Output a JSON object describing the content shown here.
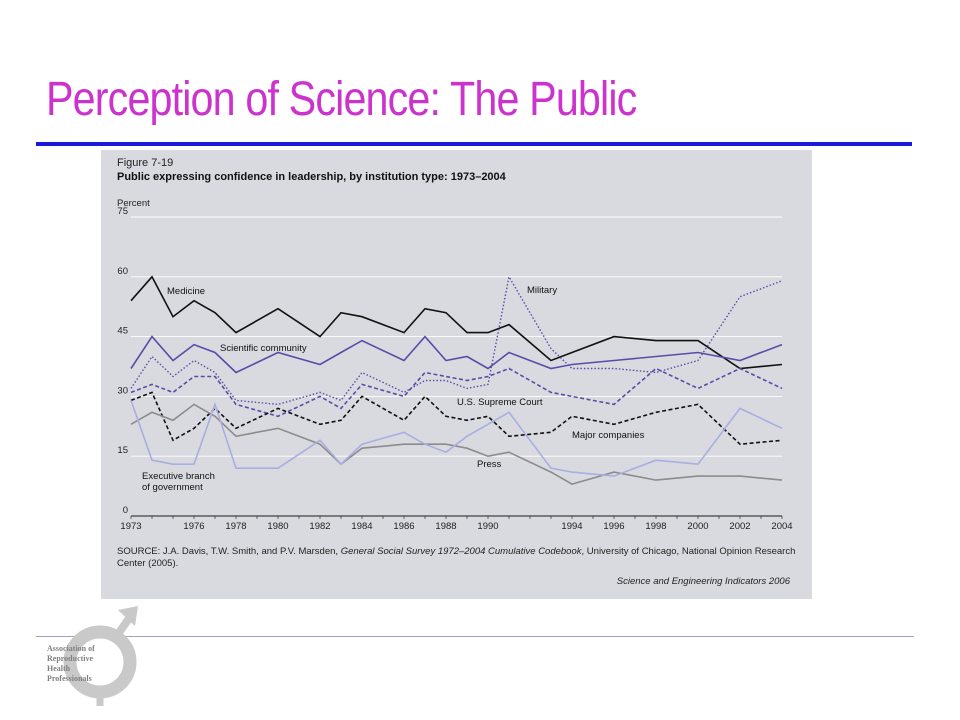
{
  "slide": {
    "title": "Perception of Science: The Public"
  },
  "figure": {
    "number": "Figure 7-19",
    "caption": "Public expressing confidence in leadership, by institution type: 1973–2004",
    "source_prefix": "SOURCE: J.A. Davis, T.W. Smith, and P.V. Marsden, ",
    "source_title": "General Social Survey 1972–2004 Cumulative Codebook",
    "source_suffix": ", University of Chicago, National Opinion Research Center (2005).",
    "credit": "Science and Engineering Indicators 2006"
  },
  "logo": {
    "lines": [
      "Association of",
      "Reproductive",
      "Health",
      "Professionals"
    ]
  },
  "colors": {
    "title": "#cc33cc",
    "title_rule": "#1a1adb",
    "panel": "#d9dadf",
    "medicine": "#111111",
    "scientific_community": "#5b4ba8",
    "military": "#5b4ba8",
    "supreme_court": "#5b4ba8",
    "major_companies": "#111111",
    "press": "#8c8c8c",
    "executive_branch": "#a8aee0"
  },
  "chart_data": {
    "type": "line",
    "ylabel": "Percent",
    "ylim": [
      0,
      75
    ],
    "yticks": [
      "0",
      "15",
      "30",
      "45",
      "60",
      "75"
    ],
    "xlim": [
      1973,
      2004
    ],
    "xticks": [
      "1973",
      "1976",
      "1978",
      "1980",
      "1982",
      "1984",
      "1986",
      "1988",
      "1990",
      "1994",
      "1996",
      "1998",
      "2000",
      "2002",
      "2004"
    ],
    "grid": true,
    "series": [
      {
        "name": "Medicine",
        "label": "Medicine",
        "style": "solid",
        "color": "#111111",
        "points": [
          [
            1973,
            54
          ],
          [
            1974,
            60
          ],
          [
            1975,
            50
          ],
          [
            1976,
            54
          ],
          [
            1977,
            51
          ],
          [
            1978,
            46
          ],
          [
            1980,
            52
          ],
          [
            1982,
            45
          ],
          [
            1983,
            51
          ],
          [
            1984,
            50
          ],
          [
            1986,
            46
          ],
          [
            1987,
            52
          ],
          [
            1988,
            51
          ],
          [
            1989,
            46
          ],
          [
            1990,
            46
          ],
          [
            1991,
            48
          ],
          [
            1993,
            39
          ],
          [
            1994,
            41
          ],
          [
            1996,
            45
          ],
          [
            1998,
            44
          ],
          [
            2000,
            44
          ],
          [
            2002,
            37
          ],
          [
            2004,
            38
          ]
        ]
      },
      {
        "name": "Scientific community",
        "label": "Scientific community",
        "style": "solid",
        "color": "#5b4ba8",
        "points": [
          [
            1973,
            37
          ],
          [
            1974,
            45
          ],
          [
            1975,
            39
          ],
          [
            1976,
            43
          ],
          [
            1977,
            41
          ],
          [
            1978,
            36
          ],
          [
            1980,
            41
          ],
          [
            1982,
            38
          ],
          [
            1983,
            41
          ],
          [
            1984,
            44
          ],
          [
            1986,
            39
          ],
          [
            1987,
            45
          ],
          [
            1988,
            39
          ],
          [
            1989,
            40
          ],
          [
            1990,
            37
          ],
          [
            1991,
            41
          ],
          [
            1993,
            37
          ],
          [
            1994,
            38
          ],
          [
            1996,
            39
          ],
          [
            1998,
            40
          ],
          [
            2000,
            41
          ],
          [
            2002,
            39
          ],
          [
            2004,
            43
          ]
        ]
      },
      {
        "name": "Military",
        "label": "Military",
        "style": "dotted",
        "color": "#5b4ba8",
        "points": [
          [
            1973,
            32
          ],
          [
            1974,
            40
          ],
          [
            1975,
            35
          ],
          [
            1976,
            39
          ],
          [
            1977,
            36
          ],
          [
            1978,
            29
          ],
          [
            1980,
            28
          ],
          [
            1982,
            31
          ],
          [
            1983,
            29
          ],
          [
            1984,
            36
          ],
          [
            1986,
            31
          ],
          [
            1987,
            34
          ],
          [
            1988,
            34
          ],
          [
            1989,
            32
          ],
          [
            1990,
            33
          ],
          [
            1991,
            60
          ],
          [
            1993,
            42
          ],
          [
            1994,
            37
          ],
          [
            1996,
            37
          ],
          [
            1998,
            36
          ],
          [
            2000,
            39
          ],
          [
            2002,
            55
          ],
          [
            2004,
            59
          ]
        ]
      },
      {
        "name": "U.S. Supreme Court",
        "label": "U.S. Supreme Court",
        "style": "dashed",
        "color": "#5b4ba8",
        "points": [
          [
            1973,
            31
          ],
          [
            1974,
            33
          ],
          [
            1975,
            31
          ],
          [
            1976,
            35
          ],
          [
            1977,
            35
          ],
          [
            1978,
            28
          ],
          [
            1980,
            25
          ],
          [
            1982,
            30
          ],
          [
            1983,
            27
          ],
          [
            1984,
            33
          ],
          [
            1986,
            30
          ],
          [
            1987,
            36
          ],
          [
            1988,
            35
          ],
          [
            1989,
            34
          ],
          [
            1990,
            35
          ],
          [
            1991,
            37
          ],
          [
            1993,
            31
          ],
          [
            1994,
            30
          ],
          [
            1996,
            28
          ],
          [
            1998,
            37
          ],
          [
            2000,
            32
          ],
          [
            2002,
            37
          ],
          [
            2004,
            32
          ]
        ]
      },
      {
        "name": "Major companies",
        "label": "Major companies",
        "style": "dashed",
        "color": "#111111",
        "points": [
          [
            1973,
            29
          ],
          [
            1974,
            31
          ],
          [
            1975,
            19
          ],
          [
            1976,
            22
          ],
          [
            1977,
            27
          ],
          [
            1978,
            22
          ],
          [
            1980,
            27
          ],
          [
            1982,
            23
          ],
          [
            1983,
            24
          ],
          [
            1984,
            30
          ],
          [
            1986,
            24
          ],
          [
            1987,
            30
          ],
          [
            1988,
            25
          ],
          [
            1989,
            24
          ],
          [
            1990,
            25
          ],
          [
            1991,
            20
          ],
          [
            1993,
            21
          ],
          [
            1994,
            25
          ],
          [
            1996,
            23
          ],
          [
            1998,
            26
          ],
          [
            2000,
            28
          ],
          [
            2002,
            18
          ],
          [
            2004,
            19
          ]
        ]
      },
      {
        "name": "Press",
        "label": "Press",
        "style": "solid",
        "color": "#8c8c8c",
        "points": [
          [
            1973,
            23
          ],
          [
            1974,
            26
          ],
          [
            1975,
            24
          ],
          [
            1976,
            28
          ],
          [
            1977,
            25
          ],
          [
            1978,
            20
          ],
          [
            1980,
            22
          ],
          [
            1982,
            18
          ],
          [
            1983,
            13
          ],
          [
            1984,
            17
          ],
          [
            1986,
            18
          ],
          [
            1987,
            18
          ],
          [
            1988,
            18
          ],
          [
            1989,
            17
          ],
          [
            1990,
            15
          ],
          [
            1991,
            16
          ],
          [
            1993,
            11
          ],
          [
            1994,
            8
          ],
          [
            1996,
            11
          ],
          [
            1998,
            9
          ],
          [
            2000,
            10
          ],
          [
            2002,
            10
          ],
          [
            2004,
            9
          ]
        ]
      },
      {
        "name": "Executive branch of government",
        "label_lines": [
          "Executive branch",
          "of government"
        ],
        "style": "solid",
        "color": "#a8aee0",
        "points": [
          [
            1973,
            29
          ],
          [
            1974,
            14
          ],
          [
            1975,
            13
          ],
          [
            1976,
            13
          ],
          [
            1977,
            28
          ],
          [
            1978,
            12
          ],
          [
            1980,
            12
          ],
          [
            1982,
            19
          ],
          [
            1983,
            13
          ],
          [
            1984,
            18
          ],
          [
            1986,
            21
          ],
          [
            1987,
            18
          ],
          [
            1988,
            16
          ],
          [
            1989,
            20
          ],
          [
            1990,
            23
          ],
          [
            1991,
            26
          ],
          [
            1993,
            12
          ],
          [
            1994,
            11
          ],
          [
            1996,
            10
          ],
          [
            1998,
            14
          ],
          [
            2000,
            13
          ],
          [
            2002,
            27
          ],
          [
            2004,
            22
          ]
        ]
      }
    ]
  }
}
